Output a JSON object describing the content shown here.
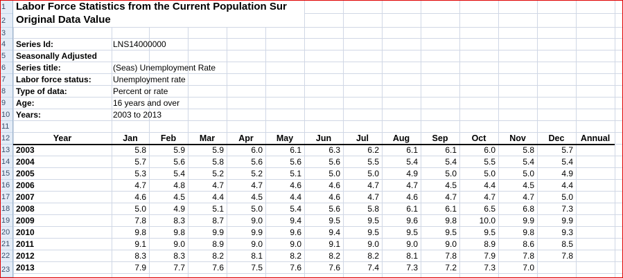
{
  "title": "Labor Force Statistics from the Current Population Sur",
  "subtitle": "Original Data Value",
  "meta": [
    {
      "label": "Series Id:",
      "value": "LNS14000000"
    },
    {
      "label": "Seasonally Adjusted",
      "value": ""
    },
    {
      "label": "Series title:",
      "value": "(Seas) Unemployment Rate"
    },
    {
      "label": "Labor force status:",
      "value": "Unemployment rate"
    },
    {
      "label": "Type of data:",
      "value": "Percent or rate"
    },
    {
      "label": "Age:",
      "value": "16 years and over"
    },
    {
      "label": "Years:",
      "value": "2003 to 2013"
    }
  ],
  "row_numbers": [
    "1",
    "2",
    "3",
    "4",
    "5",
    "6",
    "7",
    "8",
    "9",
    "10",
    "11",
    "12",
    "13",
    "14",
    "15",
    "16",
    "17",
    "18",
    "19",
    "20",
    "21",
    "22",
    "23"
  ],
  "columns": [
    "Year",
    "Jan",
    "Feb",
    "Mar",
    "Apr",
    "May",
    "Jun",
    "Jul",
    "Aug",
    "Sep",
    "Oct",
    "Nov",
    "Dec",
    "Annual"
  ],
  "table": [
    {
      "year": "2003",
      "values": [
        "5.8",
        "5.9",
        "5.9",
        "6.0",
        "6.1",
        "6.3",
        "6.2",
        "6.1",
        "6.1",
        "6.0",
        "5.8",
        "5.7",
        ""
      ]
    },
    {
      "year": "2004",
      "values": [
        "5.7",
        "5.6",
        "5.8",
        "5.6",
        "5.6",
        "5.6",
        "5.5",
        "5.4",
        "5.4",
        "5.5",
        "5.4",
        "5.4",
        ""
      ]
    },
    {
      "year": "2005",
      "values": [
        "5.3",
        "5.4",
        "5.2",
        "5.2",
        "5.1",
        "5.0",
        "5.0",
        "4.9",
        "5.0",
        "5.0",
        "5.0",
        "4.9",
        ""
      ]
    },
    {
      "year": "2006",
      "values": [
        "4.7",
        "4.8",
        "4.7",
        "4.7",
        "4.6",
        "4.6",
        "4.7",
        "4.7",
        "4.5",
        "4.4",
        "4.5",
        "4.4",
        ""
      ]
    },
    {
      "year": "2007",
      "values": [
        "4.6",
        "4.5",
        "4.4",
        "4.5",
        "4.4",
        "4.6",
        "4.7",
        "4.6",
        "4.7",
        "4.7",
        "4.7",
        "5.0",
        ""
      ]
    },
    {
      "year": "2008",
      "values": [
        "5.0",
        "4.9",
        "5.1",
        "5.0",
        "5.4",
        "5.6",
        "5.8",
        "6.1",
        "6.1",
        "6.5",
        "6.8",
        "7.3",
        ""
      ]
    },
    {
      "year": "2009",
      "values": [
        "7.8",
        "8.3",
        "8.7",
        "9.0",
        "9.4",
        "9.5",
        "9.5",
        "9.6",
        "9.8",
        "10.0",
        "9.9",
        "9.9",
        ""
      ]
    },
    {
      "year": "2010",
      "values": [
        "9.8",
        "9.8",
        "9.9",
        "9.9",
        "9.6",
        "9.4",
        "9.5",
        "9.5",
        "9.5",
        "9.5",
        "9.8",
        "9.3",
        ""
      ]
    },
    {
      "year": "2011",
      "values": [
        "9.1",
        "9.0",
        "8.9",
        "9.0",
        "9.0",
        "9.1",
        "9.0",
        "9.0",
        "9.0",
        "8.9",
        "8.6",
        "8.5",
        ""
      ]
    },
    {
      "year": "2012",
      "values": [
        "8.3",
        "8.3",
        "8.2",
        "8.1",
        "8.2",
        "8.2",
        "8.2",
        "8.1",
        "7.8",
        "7.9",
        "7.8",
        "7.8",
        ""
      ]
    },
    {
      "year": "2013",
      "values": [
        "7.9",
        "7.7",
        "7.6",
        "7.5",
        "7.6",
        "7.6",
        "7.4",
        "7.3",
        "7.2",
        "7.3",
        "7.0",
        "",
        ""
      ]
    }
  ]
}
